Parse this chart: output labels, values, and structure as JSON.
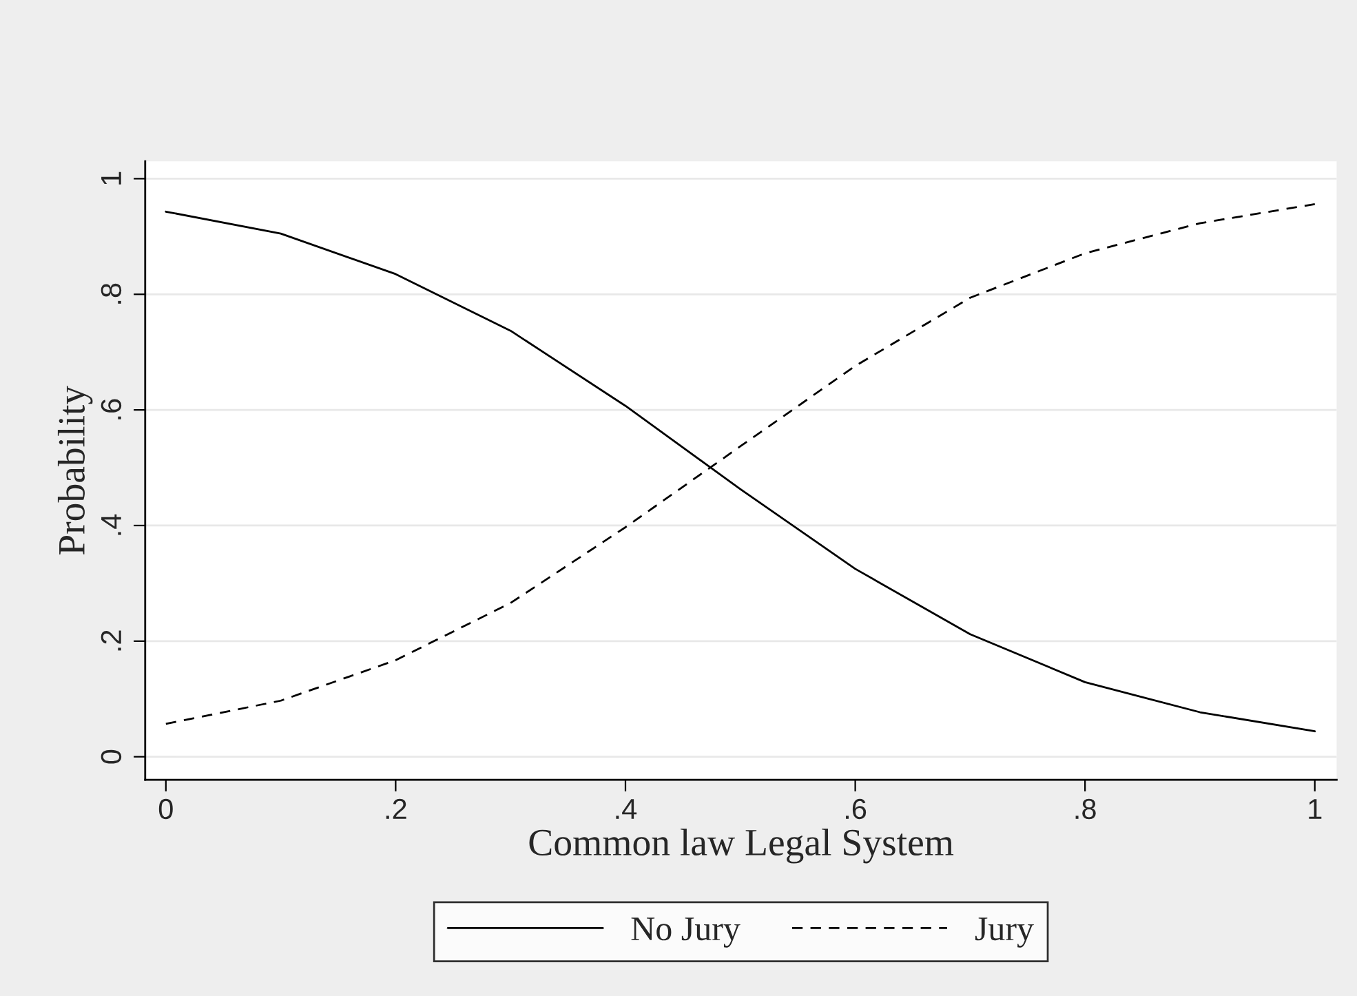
{
  "chart_data": {
    "type": "line",
    "xlabel": "Common law Legal System",
    "ylabel": "Probability",
    "x": [
      0,
      0.1,
      0.2,
      0.3,
      0.4,
      0.5,
      0.6,
      0.7,
      0.8,
      0.9,
      1
    ],
    "series": [
      {
        "name": "No Jury",
        "color": "#000000",
        "line_style": "solid",
        "values": [
          0.943,
          0.905,
          0.835,
          0.737,
          0.607,
          0.463,
          0.325,
          0.212,
          0.129,
          0.077,
          0.044
        ]
      },
      {
        "name": "Jury",
        "color": "#000000",
        "line_style": "dashed",
        "values": [
          0.057,
          0.097,
          0.167,
          0.266,
          0.397,
          0.537,
          0.676,
          0.794,
          0.871,
          0.923,
          0.956
        ]
      }
    ],
    "xlim": [
      -0.018,
      1.019
    ],
    "ylim": [
      -0.04,
      1.03
    ],
    "xticks": [
      0,
      {
        "value": 0.2,
        "label": ".2"
      },
      {
        "value": 0.4,
        "label": ".4"
      },
      {
        "value": 0.6,
        "label": ".6"
      },
      {
        "value": 0.8,
        "label": ".8"
      },
      1
    ],
    "yticks": [
      0,
      {
        "value": 0.2,
        "label": ".2"
      },
      {
        "value": 0.4,
        "label": ".4"
      },
      {
        "value": 0.6,
        "label": ".6"
      },
      {
        "value": 0.8,
        "label": ".8"
      },
      1
    ],
    "grid": "y",
    "legend": "bottom",
    "marker": "none"
  }
}
